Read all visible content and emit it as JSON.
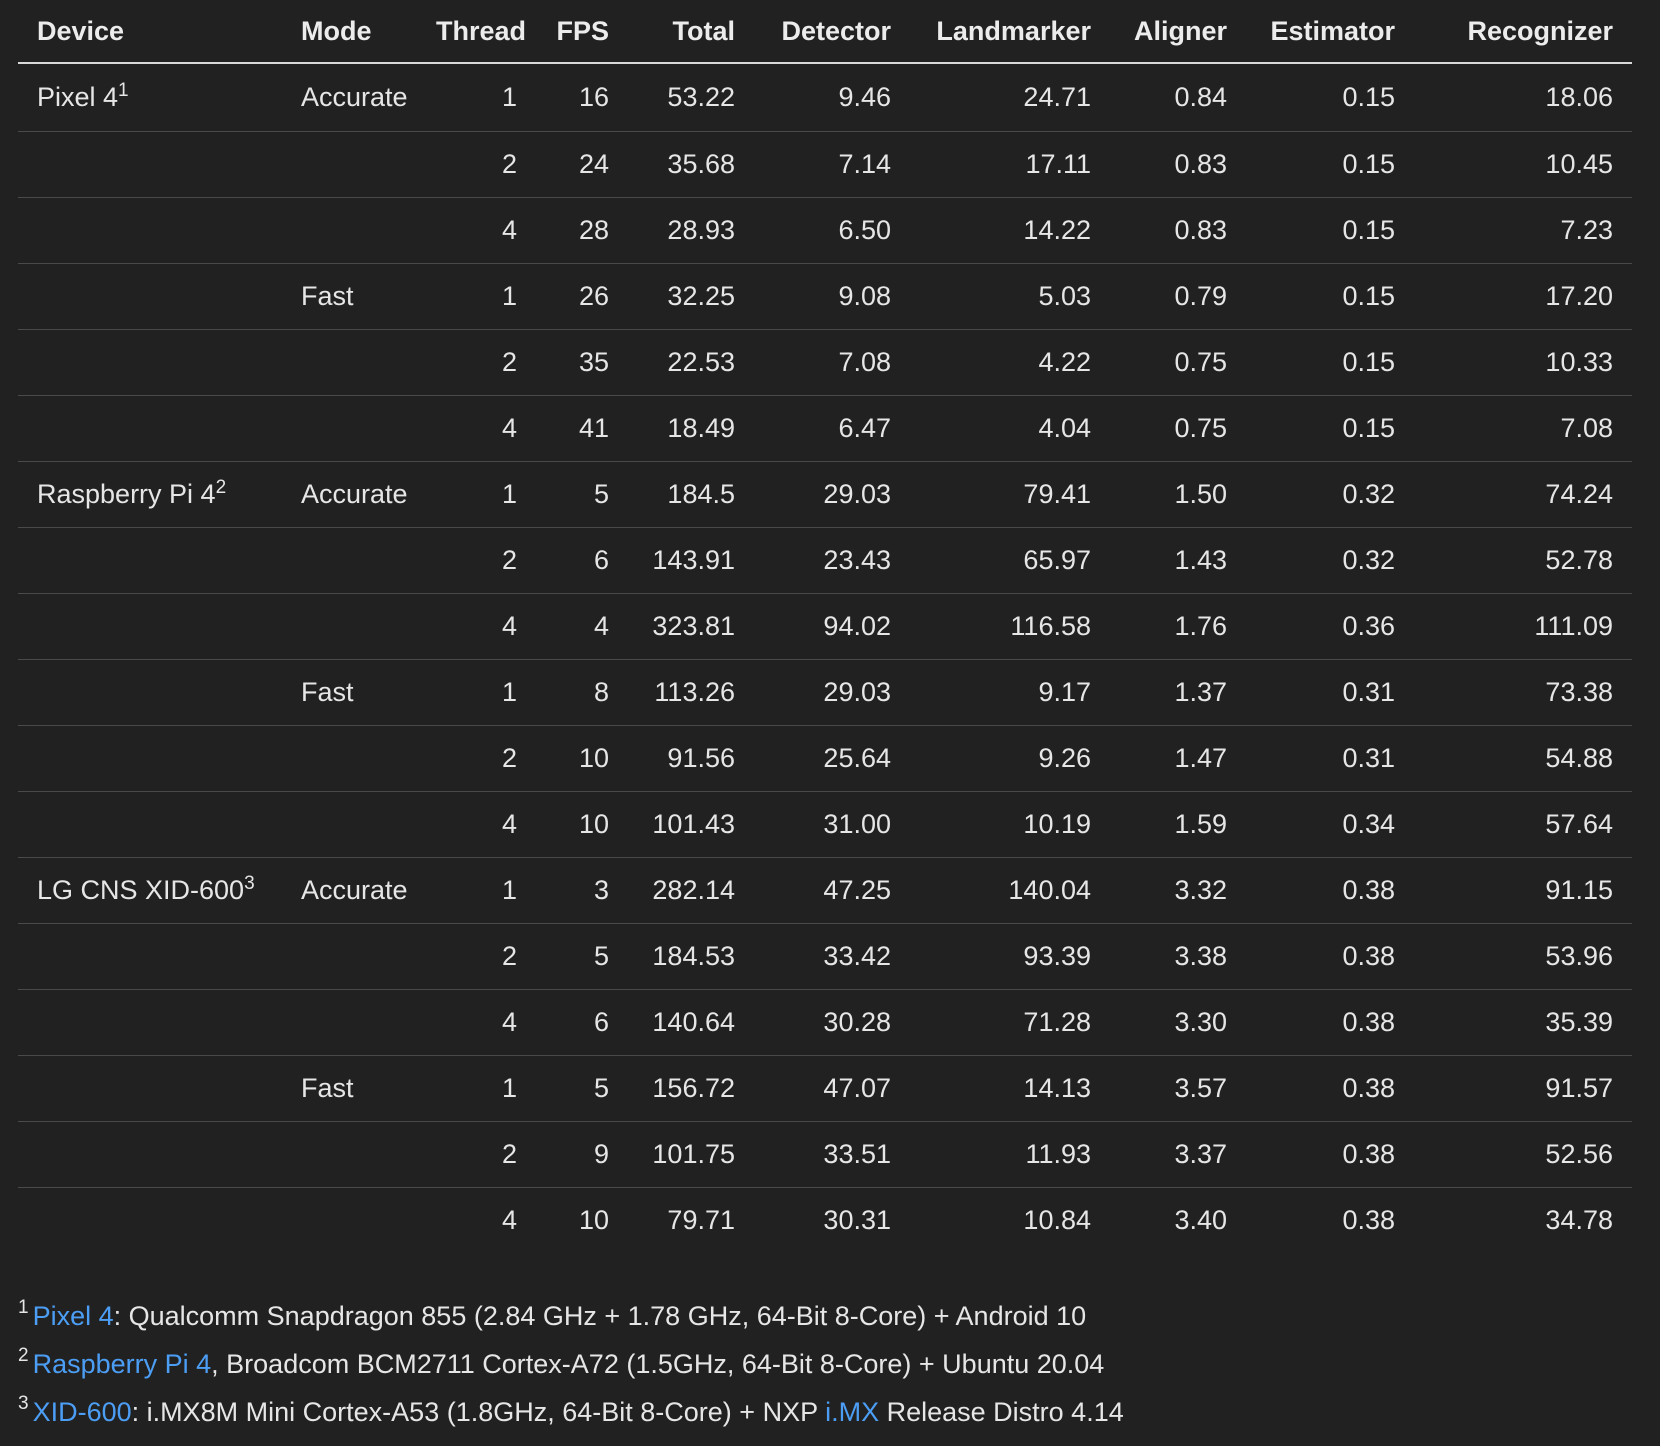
{
  "table": {
    "headers": [
      "Device",
      "Mode",
      "Thread",
      "FPS",
      "Total",
      "Detector",
      "Landmarker",
      "Aligner",
      "Estimator",
      "Recognizer"
    ],
    "rows": [
      {
        "device": "Pixel 4",
        "sup": "1",
        "mode": "Accurate",
        "cells": [
          "1",
          "16",
          "53.22",
          "9.46",
          "24.71",
          "0.84",
          "0.15",
          "18.06"
        ]
      },
      {
        "device": "",
        "sup": "",
        "mode": "",
        "cells": [
          "2",
          "24",
          "35.68",
          "7.14",
          "17.11",
          "0.83",
          "0.15",
          "10.45"
        ]
      },
      {
        "device": "",
        "sup": "",
        "mode": "",
        "cells": [
          "4",
          "28",
          "28.93",
          "6.50",
          "14.22",
          "0.83",
          "0.15",
          "7.23"
        ]
      },
      {
        "device": "",
        "sup": "",
        "mode": "Fast",
        "cells": [
          "1",
          "26",
          "32.25",
          "9.08",
          "5.03",
          "0.79",
          "0.15",
          "17.20"
        ]
      },
      {
        "device": "",
        "sup": "",
        "mode": "",
        "cells": [
          "2",
          "35",
          "22.53",
          "7.08",
          "4.22",
          "0.75",
          "0.15",
          "10.33"
        ]
      },
      {
        "device": "",
        "sup": "",
        "mode": "",
        "cells": [
          "4",
          "41",
          "18.49",
          "6.47",
          "4.04",
          "0.75",
          "0.15",
          "7.08"
        ]
      },
      {
        "device": "Raspberry Pi 4",
        "sup": "2",
        "mode": "Accurate",
        "cells": [
          "1",
          "5",
          "184.5",
          "29.03",
          "79.41",
          "1.50",
          "0.32",
          "74.24"
        ]
      },
      {
        "device": "",
        "sup": "",
        "mode": "",
        "cells": [
          "2",
          "6",
          "143.91",
          "23.43",
          "65.97",
          "1.43",
          "0.32",
          "52.78"
        ]
      },
      {
        "device": "",
        "sup": "",
        "mode": "",
        "cells": [
          "4",
          "4",
          "323.81",
          "94.02",
          "116.58",
          "1.76",
          "0.36",
          "111.09"
        ]
      },
      {
        "device": "",
        "sup": "",
        "mode": "Fast",
        "cells": [
          "1",
          "8",
          "113.26",
          "29.03",
          "9.17",
          "1.37",
          "0.31",
          "73.38"
        ]
      },
      {
        "device": "",
        "sup": "",
        "mode": "",
        "cells": [
          "2",
          "10",
          "91.56",
          "25.64",
          "9.26",
          "1.47",
          "0.31",
          "54.88"
        ]
      },
      {
        "device": "",
        "sup": "",
        "mode": "",
        "cells": [
          "4",
          "10",
          "101.43",
          "31.00",
          "10.19",
          "1.59",
          "0.34",
          "57.64"
        ]
      },
      {
        "device": "LG CNS XID-600",
        "sup": "3",
        "mode": "Accurate",
        "cells": [
          "1",
          "3",
          "282.14",
          "47.25",
          "140.04",
          "3.32",
          "0.38",
          "91.15"
        ]
      },
      {
        "device": "",
        "sup": "",
        "mode": "",
        "cells": [
          "2",
          "5",
          "184.53",
          "33.42",
          "93.39",
          "3.38",
          "0.38",
          "53.96"
        ]
      },
      {
        "device": "",
        "sup": "",
        "mode": "",
        "cells": [
          "4",
          "6",
          "140.64",
          "30.28",
          "71.28",
          "3.30",
          "0.38",
          "35.39"
        ]
      },
      {
        "device": "",
        "sup": "",
        "mode": "Fast",
        "cells": [
          "1",
          "5",
          "156.72",
          "47.07",
          "14.13",
          "3.57",
          "0.38",
          "91.57"
        ]
      },
      {
        "device": "",
        "sup": "",
        "mode": "",
        "cells": [
          "2",
          "9",
          "101.75",
          "33.51",
          "11.93",
          "3.37",
          "0.38",
          "52.56"
        ]
      },
      {
        "device": "",
        "sup": "",
        "mode": "",
        "cells": [
          "4",
          "10",
          "79.71",
          "30.31",
          "10.84",
          "3.40",
          "0.38",
          "34.78"
        ]
      }
    ]
  },
  "footnotes": [
    {
      "num": "1",
      "link_text": "Pixel 4",
      "text": ": Qualcomm Snapdragon 855 (2.84 GHz + 1.78 GHz, 64-Bit 8-Core) + Android 10"
    },
    {
      "num": "2",
      "link_text": "Raspberry Pi 4",
      "text": ", Broadcom BCM2711 Cortex-A72 (1.5GHz, 64-Bit 8-Core) + Ubuntu 20.04"
    },
    {
      "num": "3",
      "link_text": "XID-600",
      "text": ": i.MX8M Mini Cortex-A53 (1.8GHz, 64-Bit 8-Core) + NXP ",
      "link2_text": "i.MX",
      "text2": " Release Distro 4.14"
    }
  ],
  "colors": {
    "background": "#212121",
    "text": "#e6e6e6",
    "link": "#4c9ef5",
    "row_divider": "#4a4a4a",
    "header_divider": "#d8d8d8"
  }
}
